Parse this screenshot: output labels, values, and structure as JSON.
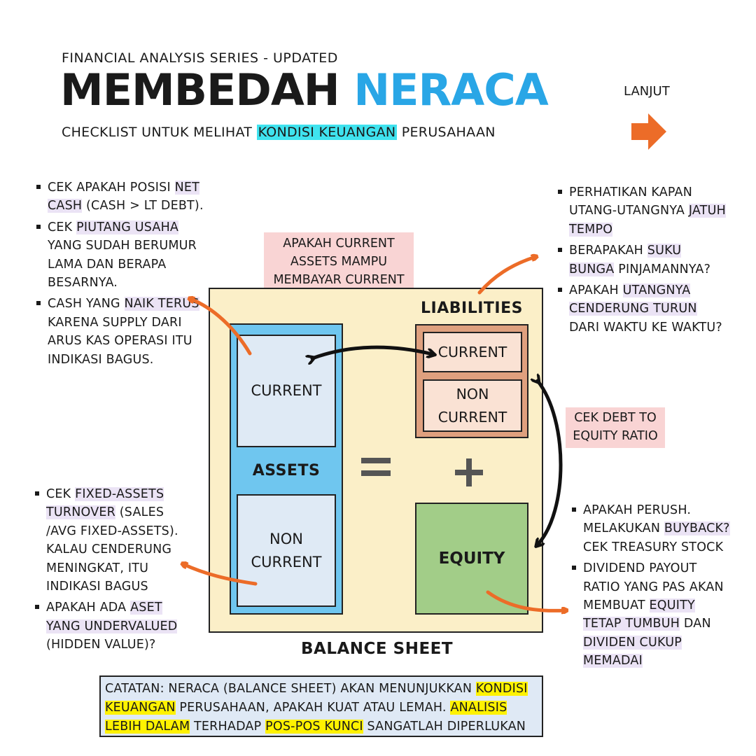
{
  "header": {
    "series": "FINANCIAL ANALYSIS SERIES - UPDATED",
    "title_part1": "MEMBEDAH",
    "title_part2": "NERACA",
    "subtitle_before": "CHECKLIST UNTUK MELIHAT",
    "subtitle_highlight": "KONDISI KEUANGAN",
    "subtitle_after": "PERUSAHAAN"
  },
  "next": {
    "label": "LANJUT",
    "icon": "arrow-right-icon"
  },
  "diagram": {
    "assets_label": "ASSETS",
    "assets_current": "CURRENT",
    "assets_noncurrent_l1": "NON",
    "assets_noncurrent_l2": "CURRENT",
    "liabilities_label": "LIABILITIES",
    "liab_current": "CURRENT",
    "liab_noncurrent_l1": "NON",
    "liab_noncurrent_l2": "CURRENT",
    "equity_label": "EQUITY",
    "balance_sheet_label": "BALANCE SHEET",
    "question_current": "APAKAH CURRENT ASSETS MAMPU MEMBAYAR CURRENT LIABILITIES?",
    "debt_to_equity": "CEK DEBT TO EQUITY RATIO"
  },
  "left_top": {
    "b1_a": "CEK APAKAH POSISI",
    "b1_hl": "NET CASH",
    "b1_b": "(CASH > LT DEBT).",
    "b2_a": "CEK",
    "b2_hl": "PIUTANG USAHA",
    "b2_b": "YANG SUDAH BERUMUR LAMA DAN BERAPA BESARNYA.",
    "b3_a": "CASH YANG",
    "b3_hl": "NAIK TERUS",
    "b3_b": "KARENA SUPPLY DARI ARUS KAS OPERASI ITU INDIKASI BAGUS."
  },
  "left_bottom": {
    "b1_a": "CEK",
    "b1_hl": "FIXED-ASSETS TURNOVER",
    "b1_b": "(SALES /AVG FIXED-ASSETS). KALAU CENDERUNG MENINGKAT, ITU INDIKASI BAGUS",
    "b2_a": "APAKAH ADA",
    "b2_hl": "ASET YANG UNDERVALUED",
    "b2_b": "(HIDDEN VALUE)?"
  },
  "right_top": {
    "b1_a": "PERHATIKAN KAPAN UTANG-UTANGNYA",
    "b1_hl": "JATUH TEMPO",
    "b2_a": "BERAPAKAH",
    "b2_hl": "SUKU BUNGA",
    "b2_b": "PINJAMANNYA?",
    "b3_a": "APAKAH",
    "b3_hl": "UTANGNYA CENDERUNG TURUN",
    "b3_b": "DARI WAKTU KE WAKTU?"
  },
  "right_bottom": {
    "b1_a": "APAKAH PERUSH. MELAKUKAN",
    "b1_hl": "BUYBACK?",
    "b1_b": "CEK TREASURY STOCK",
    "b2_a": "DIVIDEND PAYOUT RATIO YANG PAS AKAN MEMBUAT",
    "b2_hl": "EQUITY TETAP TUMBUH",
    "b2_b": "DAN",
    "b2_hl2": "DIVIDEN CUKUP MEMADAI"
  },
  "note": {
    "p1": "CATATAN: NERACA (BALANCE SHEET) AKAN MENUNJUKKAN",
    "hl1": "KONDISI KEUANGAN",
    "p2": "PERUSAHAAN, APAKAH KUAT ATAU LEMAH.",
    "hl2": "ANALISIS LEBIH DALAM",
    "p3": "TERHADAP",
    "hl3": "POS-POS KUNCI",
    "p4": "SANGATLAH DIPERLUKAN"
  },
  "colors": {
    "accent_blue": "#29a6e6",
    "arrow_orange": "#ec6c28",
    "sheet_bg": "#fbefc8",
    "assets_blue": "#6fc6ef",
    "liab_brown": "#dfa07e",
    "equity_green": "#a2cd88"
  }
}
